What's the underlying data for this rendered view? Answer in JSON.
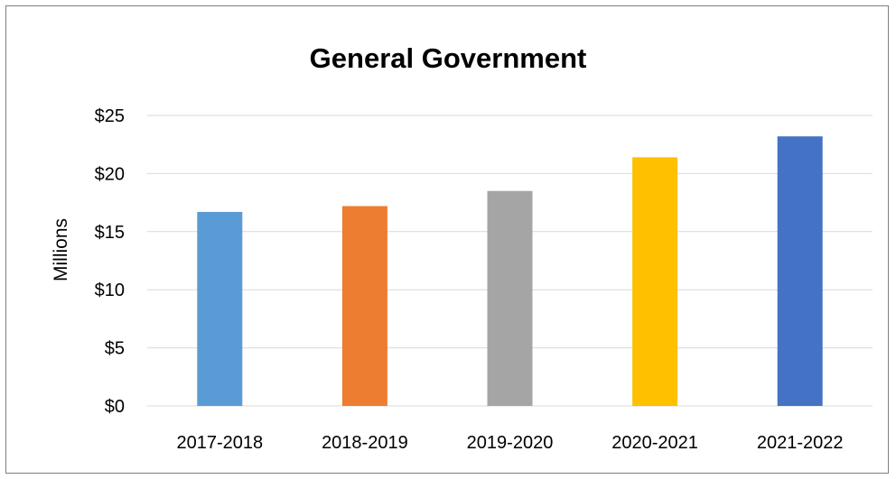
{
  "chart_data": {
    "type": "bar",
    "title": "General Government",
    "xlabel": "",
    "ylabel": "Millions",
    "categories": [
      "2017-2018",
      "2018-2019",
      "2019-2020",
      "2020-2021",
      "2021-2022"
    ],
    "values": [
      16.7,
      17.2,
      18.5,
      21.4,
      23.2
    ],
    "bar_colors": [
      "#5b9bd5",
      "#ed7d31",
      "#a5a5a5",
      "#ffc000",
      "#4472c4"
    ],
    "ylim": [
      0,
      25
    ],
    "yticks": [
      0,
      5,
      10,
      15,
      20,
      25
    ],
    "ytick_labels": [
      "$0",
      "$5",
      "$10",
      "$15",
      "$20",
      "$25"
    ],
    "grid": true,
    "legend": "none",
    "gridline_color": "#d9d9d9",
    "border_color": "#7f7f7f"
  }
}
